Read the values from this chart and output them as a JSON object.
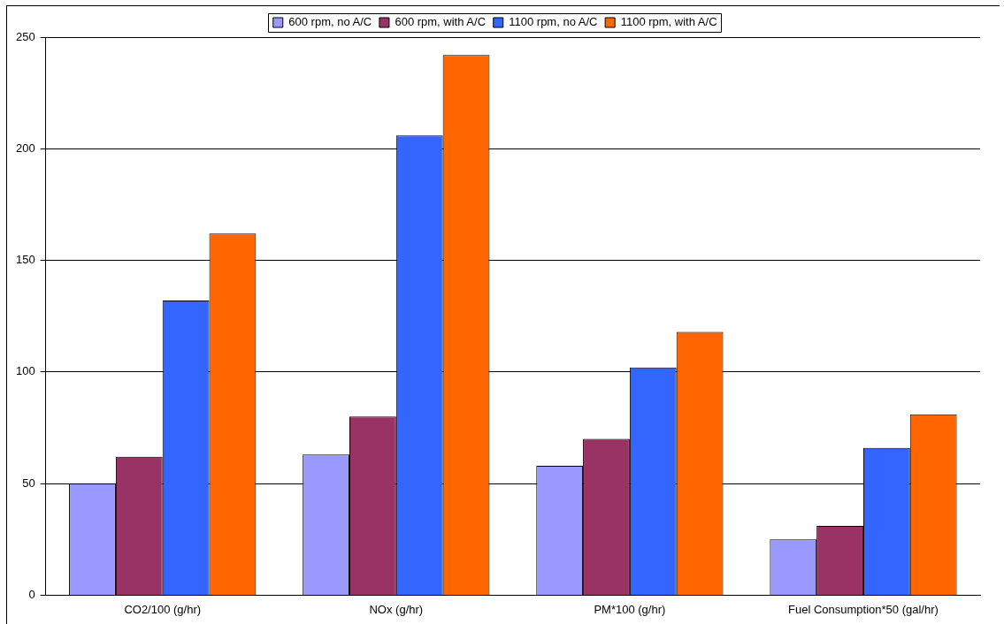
{
  "chart_data": {
    "type": "bar",
    "categories": [
      "CO2/100 (g/hr)",
      "NOx (g/hr)",
      "PM*100 (g/hr)",
      "Fuel Consumption*50 (gal/hr)"
    ],
    "series": [
      {
        "name": "600 rpm, no A/C",
        "color": "#9999ff",
        "values": [
          50,
          63,
          58,
          25
        ]
      },
      {
        "name": "600 rpm, with A/C",
        "color": "#993366",
        "values": [
          62,
          80,
          70,
          31
        ]
      },
      {
        "name": "1100 rpm, no A/C",
        "color": "#3366ff",
        "values": [
          132,
          206,
          102,
          66
        ]
      },
      {
        "name": "1100 rpm, with A/C",
        "color": "#ff6600",
        "values": [
          162,
          242,
          118,
          81
        ]
      }
    ],
    "ylim": [
      0,
      250
    ],
    "yticks": [
      0,
      50,
      100,
      150,
      200,
      250
    ],
    "grid": "y",
    "legend": "top"
  }
}
